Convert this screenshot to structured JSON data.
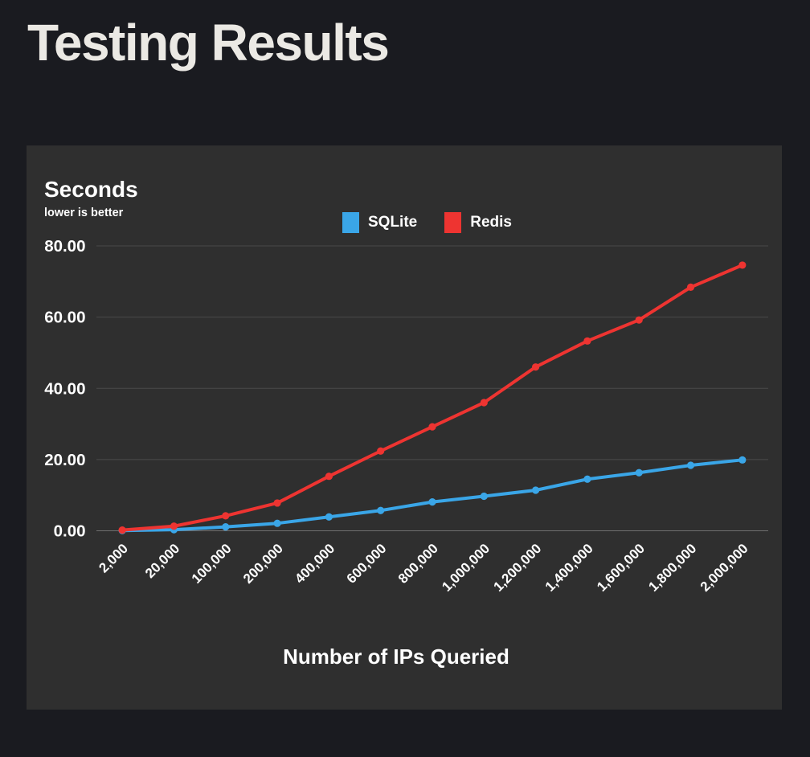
{
  "page": {
    "title": "Testing Results",
    "background_color": "#1a1b20",
    "panel_color": "#2f2f2f"
  },
  "chart_data": {
    "type": "line",
    "title": "Testing Results",
    "y_axis_title": "Seconds",
    "y_axis_subtitle": "lower is better",
    "x_axis_title": "Number of IPs Queried",
    "categories": [
      "2,000",
      "20,000",
      "100,000",
      "200,000",
      "400,000",
      "600,000",
      "800,000",
      "1,000,000",
      "1,200,000",
      "1,400,000",
      "1,600,000",
      "1,800,000",
      "2,000,000"
    ],
    "series": [
      {
        "name": "SQLite",
        "color": "#3aa6e8",
        "values": [
          0.05,
          0.3,
          1.1,
          2.1,
          3.9,
          5.7,
          8.1,
          9.7,
          11.4,
          14.5,
          16.3,
          18.4,
          19.9
        ]
      },
      {
        "name": "Redis",
        "color": "#ee3431",
        "values": [
          0.2,
          1.3,
          4.2,
          7.8,
          15.3,
          22.4,
          29.2,
          36.0,
          46.0,
          53.3,
          59.2,
          68.4,
          74.6
        ]
      }
    ],
    "y_ticks": [
      {
        "value": 0,
        "label": "0.00"
      },
      {
        "value": 20,
        "label": "20.00"
      },
      {
        "value": 40,
        "label": "40.00"
      },
      {
        "value": 60,
        "label": "60.00"
      },
      {
        "value": 80,
        "label": "80.00"
      }
    ],
    "ylim": [
      0,
      80
    ],
    "grid": "horizontal-only",
    "gridline_color": "#4a4a4a",
    "legend_position": "top-center",
    "x_tick_rotation_deg": -45,
    "text_color": "#ffffff"
  }
}
